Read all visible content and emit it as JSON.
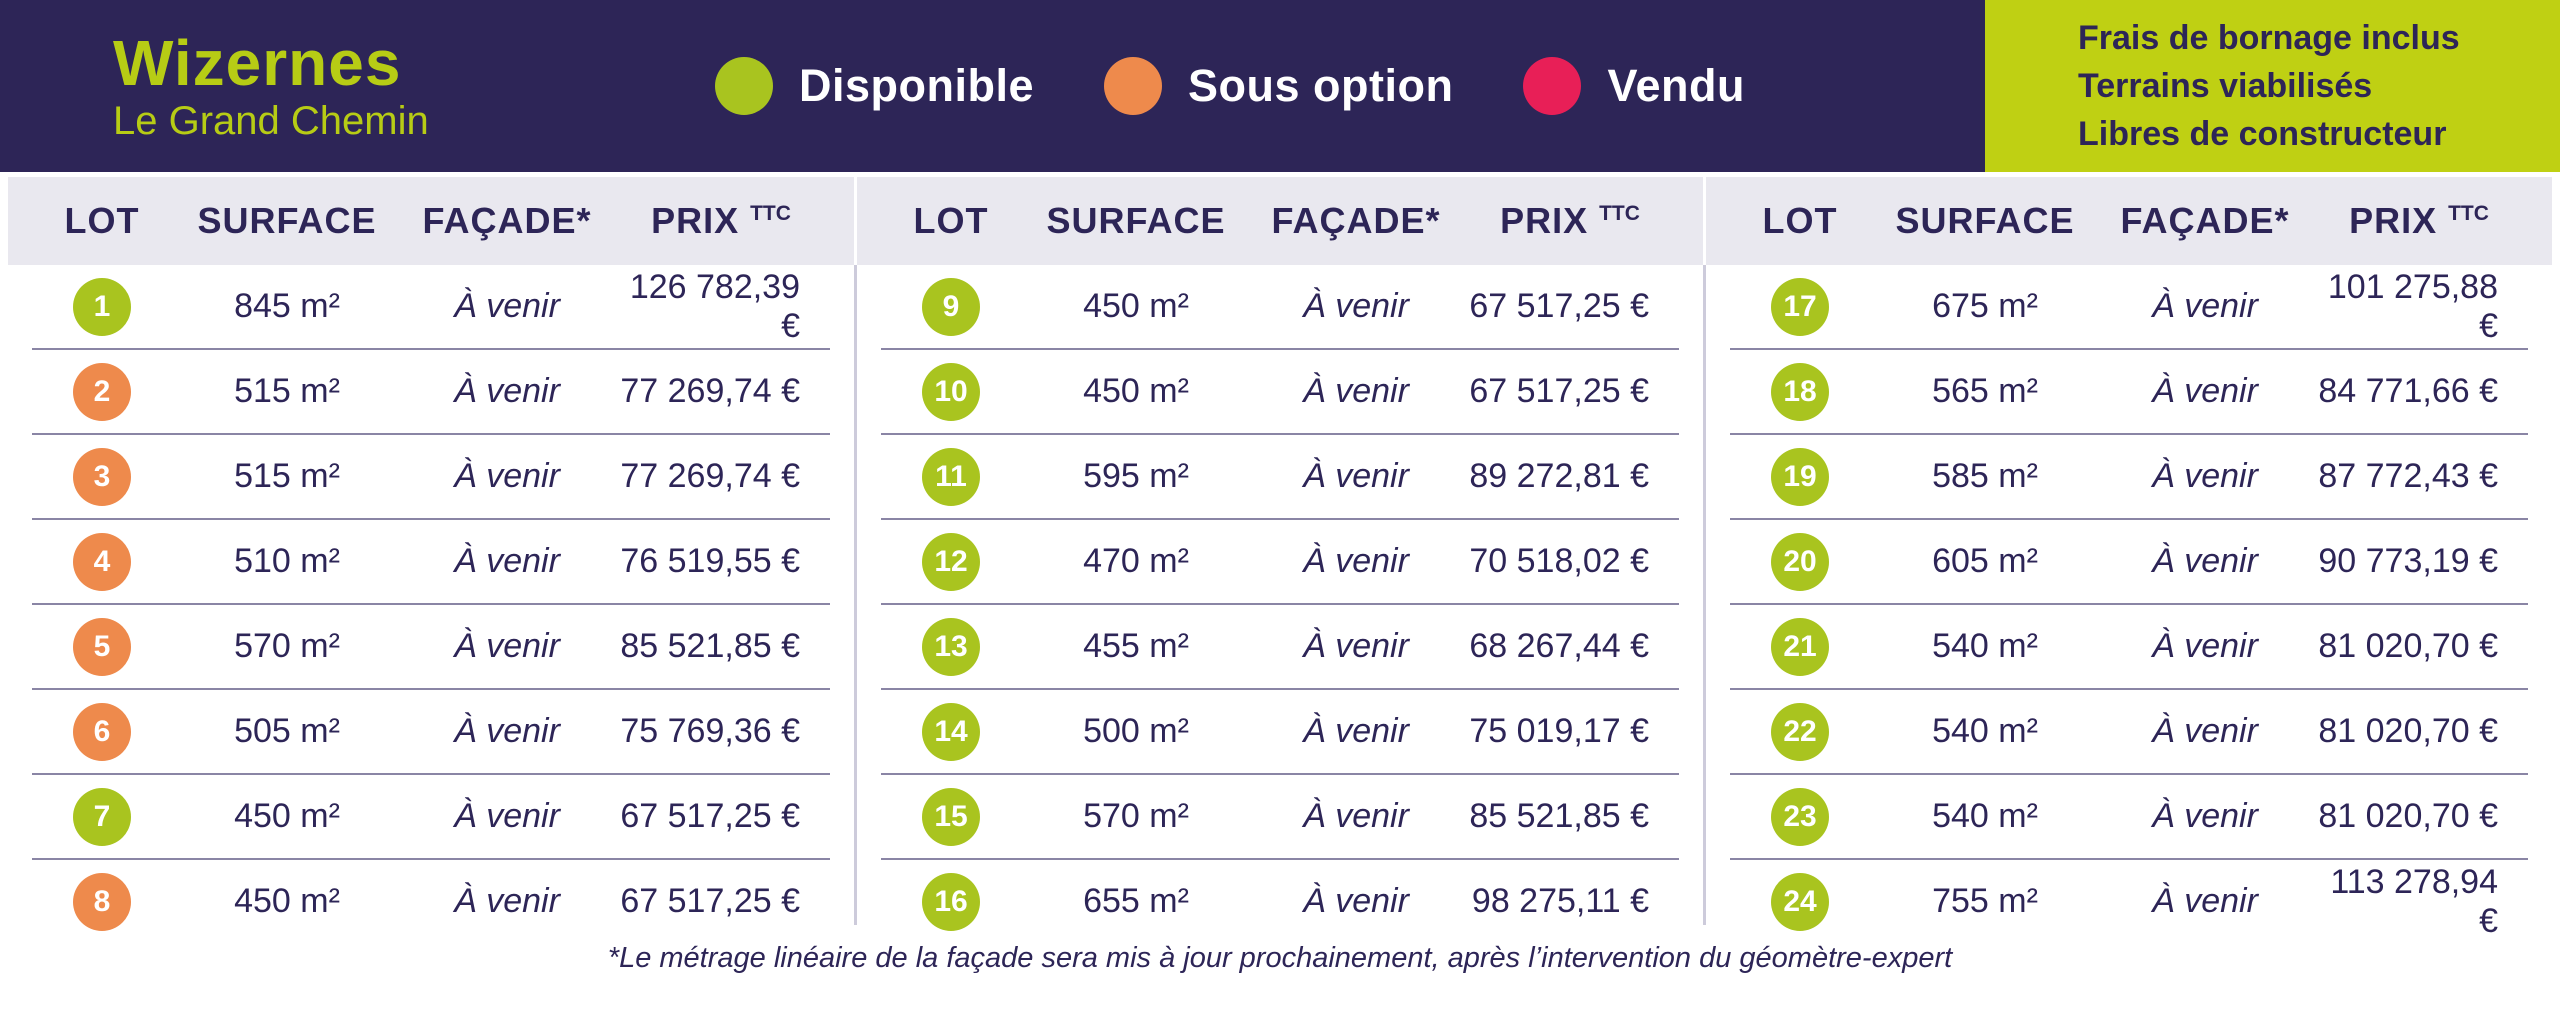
{
  "header": {
    "title": "Wizernes",
    "subtitle": "Le Grand Chemin",
    "legend": [
      {
        "label": "Disponible",
        "status": "disponible"
      },
      {
        "label": "Sous option",
        "status": "sous-option"
      },
      {
        "label": "Vendu",
        "status": "vendu"
      }
    ],
    "info_box": {
      "lines": [
        "Frais de bornage inclus",
        "Terrains viabilisés",
        "Libres de constructeur"
      ]
    }
  },
  "table": {
    "columns": [
      "LOT",
      "SURFACE",
      "FAÇADE*",
      "PRIX"
    ],
    "prix_suffix": "TTC",
    "groups": [
      {
        "rows": [
          {
            "lot": "1",
            "surface": "845 m²",
            "facade": "À venir",
            "prix": "126 782,39 €",
            "status": "disponible"
          },
          {
            "lot": "2",
            "surface": "515 m²",
            "facade": "À venir",
            "prix": "77 269,74 €",
            "status": "sous-option"
          },
          {
            "lot": "3",
            "surface": "515 m²",
            "facade": "À venir",
            "prix": "77 269,74 €",
            "status": "sous-option"
          },
          {
            "lot": "4",
            "surface": "510 m²",
            "facade": "À venir",
            "prix": "76 519,55 €",
            "status": "sous-option"
          },
          {
            "lot": "5",
            "surface": "570 m²",
            "facade": "À venir",
            "prix": "85 521,85 €",
            "status": "sous-option"
          },
          {
            "lot": "6",
            "surface": "505 m²",
            "facade": "À venir",
            "prix": "75 769,36 €",
            "status": "sous-option"
          },
          {
            "lot": "7",
            "surface": "450 m²",
            "facade": "À venir",
            "prix": "67 517,25 €",
            "status": "disponible"
          },
          {
            "lot": "8",
            "surface": "450 m²",
            "facade": "À venir",
            "prix": "67 517,25 €",
            "status": "sous-option"
          }
        ]
      },
      {
        "rows": [
          {
            "lot": "9",
            "surface": "450 m²",
            "facade": "À venir",
            "prix": "67 517,25 €",
            "status": "disponible"
          },
          {
            "lot": "10",
            "surface": "450 m²",
            "facade": "À venir",
            "prix": "67 517,25 €",
            "status": "disponible"
          },
          {
            "lot": "11",
            "surface": "595 m²",
            "facade": "À venir",
            "prix": "89 272,81 €",
            "status": "disponible"
          },
          {
            "lot": "12",
            "surface": "470 m²",
            "facade": "À venir",
            "prix": "70 518,02 €",
            "status": "disponible"
          },
          {
            "lot": "13",
            "surface": "455 m²",
            "facade": "À venir",
            "prix": "68 267,44 €",
            "status": "disponible"
          },
          {
            "lot": "14",
            "surface": "500 m²",
            "facade": "À venir",
            "prix": "75 019,17 €",
            "status": "disponible"
          },
          {
            "lot": "15",
            "surface": "570 m²",
            "facade": "À venir",
            "prix": "85 521,85 €",
            "status": "disponible"
          },
          {
            "lot": "16",
            "surface": "655 m²",
            "facade": "À venir",
            "prix": "98 275,11 €",
            "status": "disponible"
          }
        ]
      },
      {
        "rows": [
          {
            "lot": "17",
            "surface": "675 m²",
            "facade": "À venir",
            "prix": "101 275,88 €",
            "status": "disponible"
          },
          {
            "lot": "18",
            "surface": "565 m²",
            "facade": "À venir",
            "prix": "84 771,66 €",
            "status": "disponible"
          },
          {
            "lot": "19",
            "surface": "585 m²",
            "facade": "À venir",
            "prix": "87 772,43 €",
            "status": "disponible"
          },
          {
            "lot": "20",
            "surface": "605 m²",
            "facade": "À venir",
            "prix": "90 773,19 €",
            "status": "disponible"
          },
          {
            "lot": "21",
            "surface": "540 m²",
            "facade": "À venir",
            "prix": "81 020,70 €",
            "status": "disponible"
          },
          {
            "lot": "22",
            "surface": "540 m²",
            "facade": "À venir",
            "prix": "81 020,70 €",
            "status": "disponible"
          },
          {
            "lot": "23",
            "surface": "540 m²",
            "facade": "À venir",
            "prix": "81 020,70 €",
            "status": "disponible"
          },
          {
            "lot": "24",
            "surface": "755 m²",
            "facade": "À venir",
            "prix": "113 278,94 €",
            "status": "disponible"
          }
        ]
      }
    ]
  },
  "footnote": "*Le métrage linéaire de la façade sera mis à jour prochainement, après l’intervention du géomètre-expert",
  "colors": {
    "header_bg": "#2d2557",
    "accent_green": "#bfd013",
    "band_bg": "#e9e8ef",
    "text": "#2d2557",
    "row_separator": "#8a85a5",
    "column_divider": "#cdcbdb",
    "status": {
      "disponible": "#a9c41f",
      "sous-option": "#ee8a4c",
      "vendu": "#e81f57"
    }
  }
}
